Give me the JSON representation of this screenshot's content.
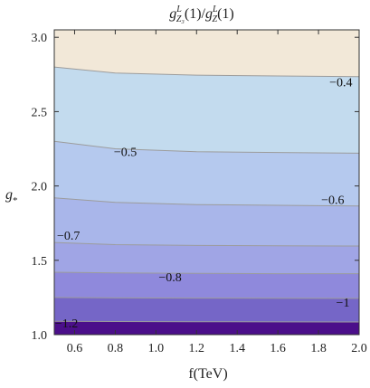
{
  "chart_data": {
    "type": "contour",
    "title": "",
    "title_parts": {
      "base1": "g",
      "sup1": "L",
      "sub1": "Z₃",
      "arg1": "(1)",
      "slash": "/",
      "base2": "g",
      "sup2": "L",
      "sub2": "Z",
      "arg2": "(1)"
    },
    "xlabel": "f(TeV)",
    "ylabel": "g*",
    "ylabel_parts": {
      "base": "g",
      "sub": "*"
    },
    "xlim": [
      0.5,
      2.0
    ],
    "ylim": [
      1.0,
      3.05
    ],
    "xticks": [
      0.6,
      0.8,
      1.0,
      1.2,
      1.4,
      1.6,
      1.8,
      2.0
    ],
    "yticks": [
      1.0,
      1.5,
      2.0,
      2.5,
      3.0
    ],
    "xtick_labels": [
      "0.6",
      "0.8",
      "1.0",
      "1.2",
      "1.4",
      "1.6",
      "1.8",
      "2.0"
    ],
    "ytick_labels": [
      "1.0",
      "1.5",
      "2.0",
      "2.5",
      "3.0"
    ],
    "contours": [
      {
        "level": -1.2,
        "label": "-1.2",
        "x": [
          0.5,
          0.8,
          1.2,
          1.6,
          2.0
        ],
        "y": [
          1.09,
          1.088,
          1.087,
          1.086,
          1.085
        ],
        "label_at": [
          0.56,
          1.05
        ]
      },
      {
        "level": -1.0,
        "label": "-1",
        "x": [
          0.5,
          0.8,
          1.2,
          1.6,
          2.0
        ],
        "y": [
          1.25,
          1.247,
          1.246,
          1.245,
          1.244
        ],
        "label_at": [
          1.92,
          1.19
        ]
      },
      {
        "level": -0.8,
        "label": "-0.8",
        "x": [
          0.5,
          0.8,
          1.2,
          1.6,
          2.0
        ],
        "y": [
          1.42,
          1.415,
          1.412,
          1.41,
          1.41
        ],
        "label_at": [
          1.07,
          1.36
        ]
      },
      {
        "level": -0.7,
        "label": "-0.7",
        "x": [
          0.5,
          0.8,
          1.2,
          1.6,
          2.0
        ],
        "y": [
          1.62,
          1.605,
          1.6,
          1.598,
          1.596
        ],
        "label_at": [
          0.57,
          1.64
        ]
      },
      {
        "level": -0.6,
        "label": "-0.6",
        "x": [
          0.5,
          0.8,
          1.2,
          1.6,
          2.0
        ],
        "y": [
          1.92,
          1.89,
          1.875,
          1.87,
          1.865
        ],
        "label_at": [
          1.87,
          1.88
        ]
      },
      {
        "level": -0.5,
        "label": "-0.5",
        "x": [
          0.5,
          0.8,
          1.2,
          1.6,
          2.0
        ],
        "y": [
          2.3,
          2.25,
          2.23,
          2.225,
          2.22
        ],
        "label_at": [
          0.85,
          2.2
        ]
      },
      {
        "level": -0.4,
        "label": "-0.4",
        "x": [
          0.5,
          0.8,
          1.2,
          1.6,
          2.0
        ],
        "y": [
          2.8,
          2.76,
          2.745,
          2.74,
          2.735
        ],
        "label_at": [
          1.91,
          2.67
        ]
      }
    ],
    "region_colors": [
      "#4b0f8a",
      "#7566c7",
      "#8f89dc",
      "#a0a5e5",
      "#a9b6ea",
      "#b5c9ee",
      "#c3dbee",
      "#f2e8d8"
    ],
    "line_color": "#9c9c9c",
    "grid": false,
    "legend": "none"
  }
}
